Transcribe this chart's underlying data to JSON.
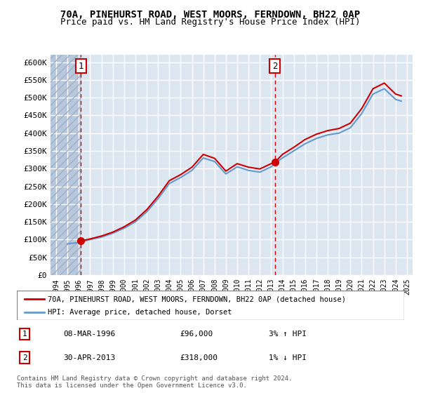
{
  "title1": "70A, PINEHURST ROAD, WEST MOORS, FERNDOWN, BH22 0AP",
  "title2": "Price paid vs. HM Land Registry's House Price Index (HPI)",
  "legend_line1": "70A, PINEHURST ROAD, WEST MOORS, FERNDOWN, BH22 0AP (detached house)",
  "legend_line2": "HPI: Average price, detached house, Dorset",
  "footer": "Contains HM Land Registry data © Crown copyright and database right 2024.\nThis data is licensed under the Open Government Licence v3.0.",
  "sale1_date": "08-MAR-1996",
  "sale1_price": 96000,
  "sale1_hpi": "3% ↑ HPI",
  "sale1_x": 1996.19,
  "sale2_date": "30-APR-2013",
  "sale2_price": 318000,
  "sale2_hpi": "1% ↓ HPI",
  "sale2_x": 2013.33,
  "ylim": [
    0,
    620000
  ],
  "xlim": [
    1993.5,
    2025.5
  ],
  "price_line_color": "#cc0000",
  "hpi_line_color": "#6699cc",
  "background_color": "#dce6f1",
  "hatch_color": "#b8c8dc",
  "grid_color": "#ffffff",
  "sale_marker_color": "#cc0000",
  "dashed_line_color": "#cc0000",
  "annotation_box_color": "#cc0000",
  "yticks": [
    0,
    50000,
    100000,
    150000,
    200000,
    250000,
    300000,
    350000,
    400000,
    450000,
    500000,
    550000,
    600000
  ],
  "price_data_x": [
    1996.19,
    2013.33
  ],
  "price_data_y": [
    96000,
    318000
  ],
  "hpi_data_x": [
    1995.0,
    1996.0,
    1996.19,
    1997.0,
    1998.0,
    1999.0,
    2000.0,
    2001.0,
    2002.0,
    2003.0,
    2004.0,
    2005.0,
    2006.0,
    2007.0,
    2008.0,
    2009.0,
    2010.0,
    2011.0,
    2012.0,
    2013.0,
    2013.33,
    2014.0,
    2015.0,
    2016.0,
    2017.0,
    2018.0,
    2019.0,
    2020.0,
    2021.0,
    2022.0,
    2023.0,
    2024.0,
    2024.5
  ],
  "hpi_data_y": [
    88000,
    92000,
    94000,
    100000,
    107000,
    118000,
    132000,
    150000,
    178000,
    215000,
    258000,
    275000,
    295000,
    330000,
    320000,
    285000,
    305000,
    295000,
    290000,
    305000,
    315000,
    330000,
    350000,
    370000,
    385000,
    395000,
    400000,
    415000,
    455000,
    510000,
    525000,
    495000,
    490000
  ],
  "full_price_line_x": [
    1996.19,
    1997.0,
    1998.0,
    1999.0,
    2000.0,
    2001.0,
    2002.0,
    2003.0,
    2004.0,
    2005.0,
    2006.0,
    2007.0,
    2008.0,
    2009.0,
    2010.0,
    2011.0,
    2012.0,
    2013.0,
    2013.33,
    2014.0,
    2015.0,
    2016.0,
    2017.0,
    2018.0,
    2019.0,
    2020.0,
    2021.0,
    2022.0,
    2023.0,
    2024.0,
    2024.5
  ],
  "full_price_line_y": [
    96000,
    102000,
    110000,
    121000,
    136000,
    155000,
    184000,
    222000,
    266000,
    283000,
    304000,
    340000,
    329000,
    293000,
    314000,
    304000,
    299000,
    314000,
    318000,
    340000,
    360000,
    382000,
    397000,
    407000,
    413000,
    428000,
    469000,
    525000,
    541000,
    510000,
    505000
  ]
}
